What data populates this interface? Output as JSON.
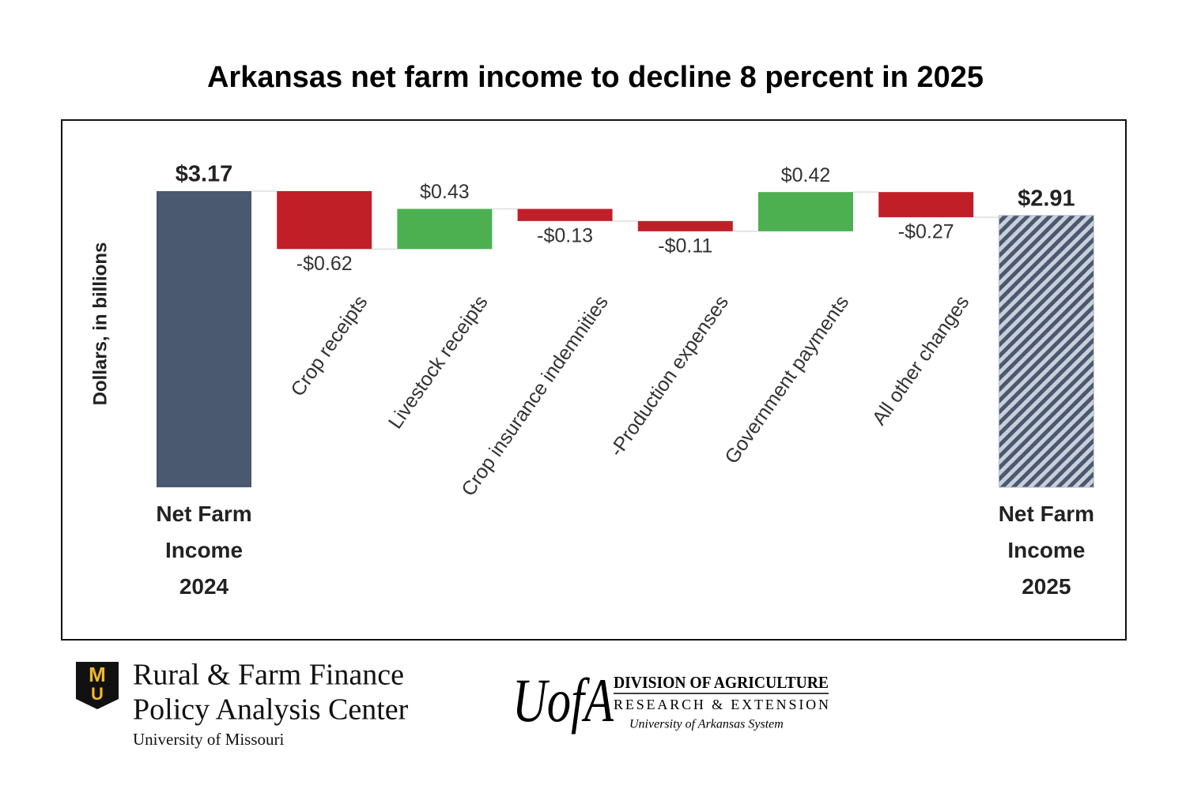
{
  "chart_data": {
    "type": "waterfall",
    "title": "Arkansas net farm income to decline 8 percent in 2025",
    "y_label": "Dollars, in billions",
    "categories": [
      "Net Farm Income 2024",
      "Crop receipts",
      "Livestock receipts",
      "Crop insurance indemnities",
      "-Production expenses",
      "Government payments",
      "All other changes",
      "Net Farm Income 2025"
    ],
    "values": [
      3.17,
      -0.62,
      0.43,
      -0.13,
      -0.11,
      0.42,
      -0.27,
      2.91
    ],
    "value_labels": [
      "$3.17",
      "-$0.62",
      "$0.43",
      "-$0.13",
      "-$0.11",
      "$0.42",
      "-$0.27",
      "$2.91"
    ],
    "measure": [
      "absolute",
      "relative",
      "relative",
      "relative",
      "relative",
      "relative",
      "relative",
      "total"
    ],
    "total_color": "#4a5870",
    "increase_color": "#4caf50",
    "decrease_color": "#c01f28"
  },
  "footer": {
    "left": {
      "logo": [
        "M",
        "U"
      ],
      "lines": [
        "Rural & Farm Finance",
        "Policy Analysis Center",
        "University of Missouri"
      ]
    },
    "right": {
      "logo": "UofA",
      "lines": [
        "DIVISION OF AGRICULTURE",
        "RESEARCH & EXTENSION",
        "University of Arkansas System"
      ]
    }
  }
}
